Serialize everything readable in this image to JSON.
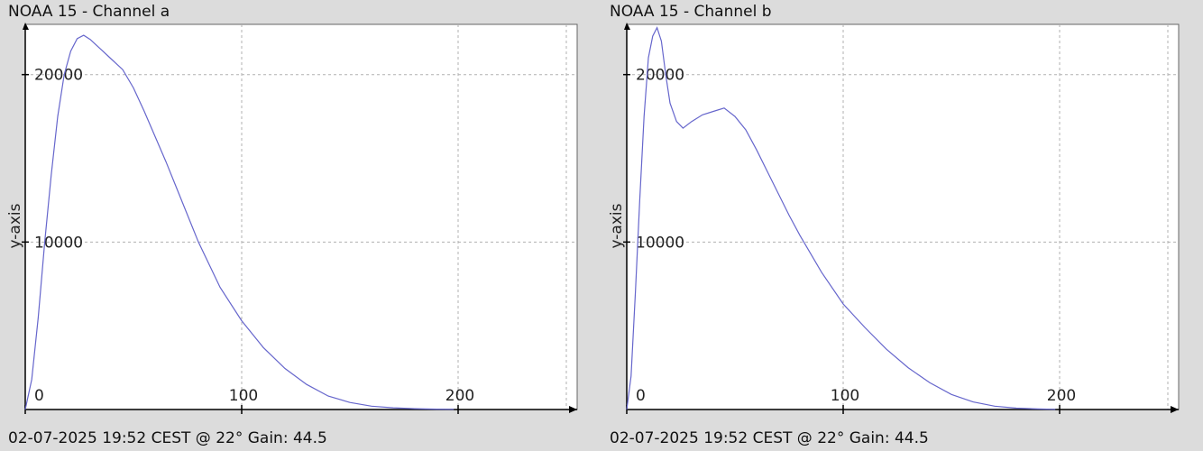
{
  "chart_data": [
    {
      "type": "line",
      "title": "NOAA 15 - Channel a",
      "footer": "02-07-2025 19:52 CEST @ 22° Gain: 44.5",
      "ylabel": "y-axis",
      "xlabel": "",
      "xlim": [
        0,
        255
      ],
      "ylim": [
        0,
        23000
      ],
      "xticks": [
        "0",
        "100",
        "200"
      ],
      "yticks": [
        "10000",
        "20000"
      ],
      "grid": true,
      "line_color": "#6666cc",
      "series": [
        {
          "x": [
            0,
            3,
            6,
            9,
            12,
            15,
            18,
            21,
            24,
            27,
            30,
            35,
            40,
            45,
            50,
            55,
            60,
            65,
            70,
            80,
            90,
            100,
            110,
            120,
            130,
            140,
            150,
            160,
            170,
            180,
            190,
            198
          ],
          "values": [
            0,
            1800,
            5500,
            10000,
            14000,
            17500,
            20000,
            21400,
            22150,
            22350,
            22100,
            21500,
            20900,
            20300,
            19200,
            17800,
            16300,
            14800,
            13200,
            10000,
            7300,
            5300,
            3700,
            2450,
            1500,
            800,
            420,
            200,
            100,
            50,
            20,
            10
          ]
        }
      ]
    },
    {
      "type": "line",
      "title": "NOAA 15 - Channel b",
      "footer": "02-07-2025 19:52 CEST @ 22° Gain: 44.5",
      "ylabel": "y-axis",
      "xlabel": "",
      "xlim": [
        0,
        255
      ],
      "ylim": [
        0,
        23000
      ],
      "xticks": [
        "0",
        "100",
        "200"
      ],
      "yticks": [
        "10000",
        "20000"
      ],
      "grid": true,
      "line_color": "#6666cc",
      "series": [
        {
          "x": [
            0,
            2,
            4,
            6,
            8,
            10,
            12,
            14,
            16,
            18,
            20,
            23,
            26,
            30,
            35,
            40,
            45,
            50,
            55,
            60,
            65,
            70,
            75,
            80,
            90,
            100,
            110,
            120,
            130,
            140,
            150,
            160,
            170,
            180,
            190,
            198
          ],
          "values": [
            0,
            2000,
            7000,
            12500,
            17500,
            21000,
            22300,
            22800,
            22000,
            20000,
            18300,
            17200,
            16800,
            17200,
            17600,
            17800,
            18000,
            17500,
            16700,
            15500,
            14200,
            12900,
            11600,
            10400,
            8200,
            6300,
            4900,
            3600,
            2500,
            1600,
            900,
            450,
            200,
            80,
            30,
            10
          ]
        }
      ]
    }
  ]
}
